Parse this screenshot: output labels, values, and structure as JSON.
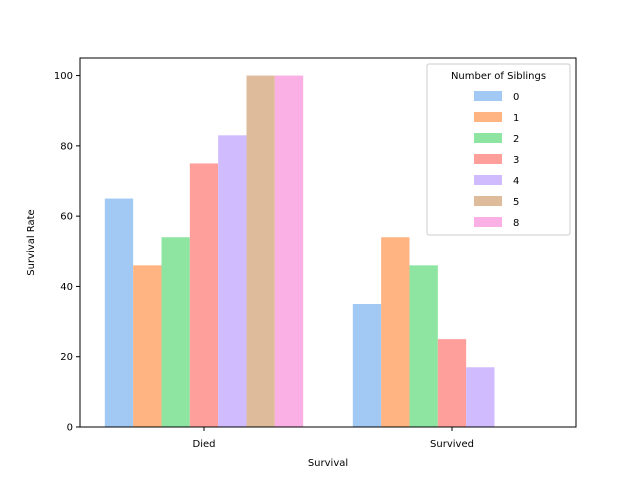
{
  "chart_data": {
    "type": "bar",
    "title": "",
    "xlabel": "Survival",
    "ylabel": "Survival Rate",
    "categories": [
      "Died",
      "Survived"
    ],
    "ylim": [
      0,
      105
    ],
    "yticks": [
      0,
      20,
      40,
      60,
      80,
      100
    ],
    "grid": false,
    "legend": {
      "title": "Number of Siblings",
      "position": "top-right"
    },
    "series": [
      {
        "name": "0",
        "color": "#a1c9f4",
        "values": [
          65,
          35
        ]
      },
      {
        "name": "1",
        "color": "#ffb482",
        "values": [
          46,
          54
        ]
      },
      {
        "name": "2",
        "color": "#8de5a1",
        "values": [
          54,
          46
        ]
      },
      {
        "name": "3",
        "color": "#ff9f9b",
        "values": [
          75,
          25
        ]
      },
      {
        "name": "4",
        "color": "#d0bbff",
        "values": [
          83,
          17
        ]
      },
      {
        "name": "5",
        "color": "#debb9b",
        "values": [
          100,
          0
        ]
      },
      {
        "name": "8",
        "color": "#fab0e4",
        "values": [
          100,
          0
        ]
      }
    ]
  }
}
